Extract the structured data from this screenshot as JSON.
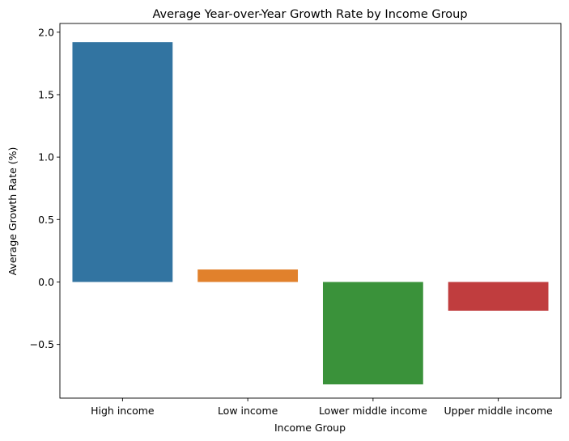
{
  "chart_data": {
    "type": "bar",
    "title": "Average Year-over-Year Growth Rate by Income Group",
    "xlabel": "Income Group",
    "ylabel": "Average Growth Rate (%)",
    "categories": [
      "High income",
      "Low income",
      "Lower middle income",
      "Upper middle income"
    ],
    "values": [
      1.92,
      0.1,
      -0.82,
      -0.23
    ],
    "colors": [
      "#3274a1",
      "#e1812c",
      "#3a923a",
      "#c03d3e"
    ],
    "ylim": [
      -0.93,
      2.07
    ],
    "yticks": [
      -0.5,
      0.0,
      0.5,
      1.0,
      1.5,
      2.0
    ],
    "ytick_labels": [
      "−0.5",
      "0.0",
      "0.5",
      "1.0",
      "1.5",
      "2.0"
    ],
    "grid": false,
    "legend": "none"
  }
}
